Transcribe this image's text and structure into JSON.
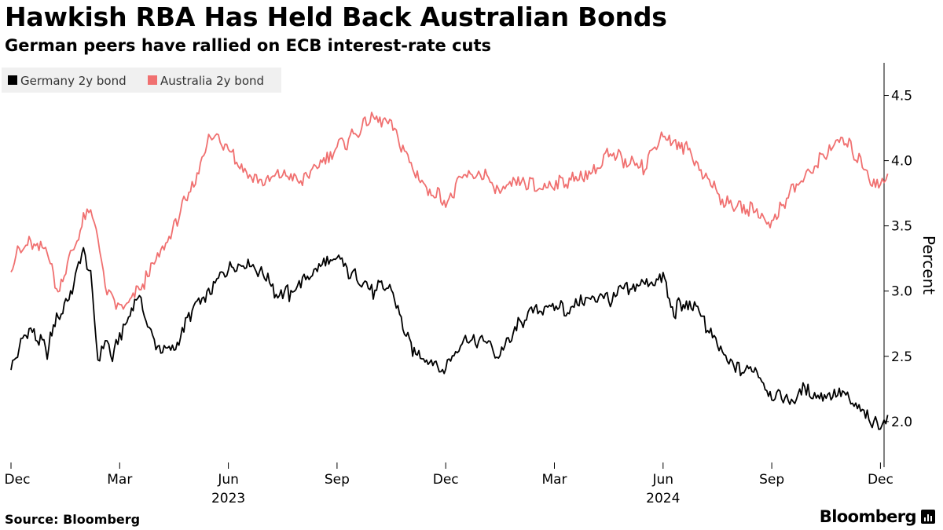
{
  "title": "Hawkish RBA Has Held Back Australian Bonds",
  "subtitle": "German peers have rallied on ECB interest-rate cuts",
  "source": "Source: Bloomberg",
  "brand": "Bloomberg",
  "colors": {
    "germany": "#000000",
    "australia": "#f07070",
    "legend_bg": "#f0f0f0",
    "axis": "#000000",
    "grid": "#cccccc"
  },
  "chart_data": {
    "type": "line",
    "ylabel": "Percent",
    "ylim": [
      1.65,
      4.75
    ],
    "yticks": [
      2.0,
      2.5,
      3.0,
      3.5,
      4.0,
      4.5
    ],
    "ytick_labels": [
      "2.0",
      "2.5",
      "3.0",
      "3.5",
      "4.0",
      "4.5"
    ],
    "x_start": "2022-12-01",
    "x_end": "2024-12-10",
    "x_ticks": [
      {
        "label": "Dec",
        "month_index": 0
      },
      {
        "label": "Mar",
        "month_index": 3
      },
      {
        "label": "Jun",
        "month_index": 6
      },
      {
        "label": "Sep",
        "month_index": 9
      },
      {
        "label": "Dec",
        "month_index": 12
      },
      {
        "label": "Mar",
        "month_index": 15
      },
      {
        "label": "Jun",
        "month_index": 18
      },
      {
        "label": "Sep",
        "month_index": 21
      },
      {
        "label": "Dec",
        "month_index": 24
      }
    ],
    "year_labels": [
      {
        "label": "2023",
        "month_index": 6
      },
      {
        "label": "2024",
        "month_index": 18
      }
    ],
    "series": [
      {
        "name": "Germany 2y bond",
        "x_month": [
          0,
          0.5,
          1,
          1.3,
          1.6,
          2,
          2.2,
          2.4,
          2.6,
          2.8,
          3,
          3.2,
          3.5,
          4,
          4.5,
          5,
          5.5,
          6,
          6.5,
          7,
          7.5,
          8,
          8.5,
          9,
          9.5,
          10,
          10.5,
          11,
          11.3,
          11.6,
          12,
          12.5,
          13,
          13.5,
          14,
          14.5,
          15,
          15.5,
          16,
          16.5,
          17,
          17.5,
          18,
          18.3,
          18.6,
          19,
          19.5,
          20,
          20.5,
          21,
          21.5,
          22,
          22.5,
          23,
          23.5,
          24,
          24.2
        ],
        "values": [
          2.45,
          2.7,
          2.55,
          2.8,
          2.95,
          3.3,
          3.1,
          2.45,
          2.6,
          2.5,
          2.65,
          2.8,
          2.95,
          2.6,
          2.55,
          2.85,
          3.0,
          3.2,
          3.25,
          3.1,
          2.95,
          3.05,
          3.2,
          3.25,
          3.1,
          3.0,
          3.05,
          2.6,
          2.5,
          2.45,
          2.4,
          2.6,
          2.65,
          2.5,
          2.75,
          2.85,
          2.9,
          2.85,
          2.95,
          2.95,
          3.0,
          3.05,
          3.1,
          2.85,
          2.9,
          2.85,
          2.55,
          2.4,
          2.4,
          2.2,
          2.15,
          2.25,
          2.2,
          2.2,
          2.05,
          1.95,
          2.05
        ]
      },
      {
        "name": "Australia 2y bond",
        "x_month": [
          0,
          0.5,
          1,
          1.3,
          1.6,
          2,
          2.2,
          2.4,
          2.6,
          2.8,
          3,
          3.2,
          3.5,
          4,
          4.5,
          5,
          5.5,
          6,
          6.5,
          7,
          7.5,
          8,
          8.5,
          9,
          9.5,
          10,
          10.5,
          11,
          11.3,
          11.6,
          12,
          12.5,
          13,
          13.5,
          14,
          14.5,
          15,
          15.5,
          16,
          16.5,
          17,
          17.5,
          18,
          18.3,
          18.6,
          19,
          19.5,
          20,
          20.5,
          21,
          21.5,
          22,
          22.5,
          23,
          23.5,
          24,
          24.2
        ],
        "values": [
          3.2,
          3.4,
          3.3,
          3.0,
          3.25,
          3.55,
          3.6,
          3.4,
          3.0,
          2.9,
          2.9,
          2.85,
          3.0,
          3.2,
          3.5,
          3.8,
          4.2,
          4.1,
          3.9,
          3.8,
          3.9,
          3.85,
          3.95,
          4.1,
          4.2,
          4.35,
          4.3,
          4.0,
          3.85,
          3.75,
          3.7,
          3.85,
          3.9,
          3.75,
          3.85,
          3.8,
          3.8,
          3.85,
          3.9,
          4.05,
          4.0,
          3.95,
          4.2,
          4.15,
          4.1,
          3.95,
          3.75,
          3.65,
          3.6,
          3.55,
          3.75,
          3.9,
          4.05,
          4.15,
          3.95,
          3.8,
          3.9
        ]
      }
    ]
  }
}
